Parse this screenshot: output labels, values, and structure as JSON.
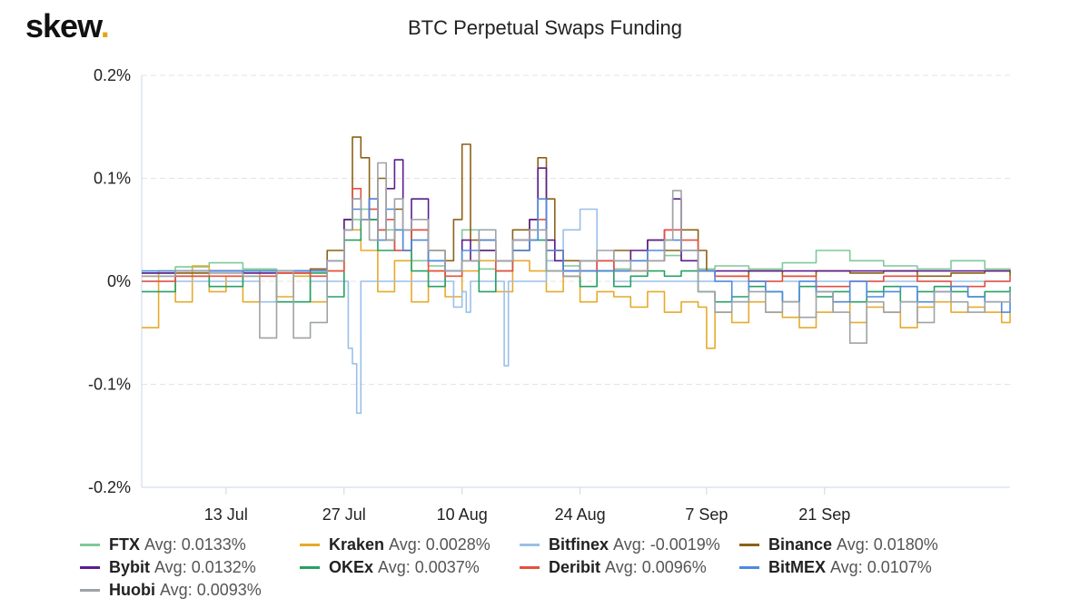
{
  "brand": {
    "name": "skew",
    "dot": "."
  },
  "chart_data": {
    "type": "line",
    "title": "BTC Perpetual Swaps Funding",
    "xlabel": "",
    "ylabel": "",
    "ylim": [
      -0.2,
      0.2
    ],
    "y_ticks": [
      0.2,
      0.1,
      0,
      -0.1,
      -0.2
    ],
    "y_tick_labels": [
      "0.2%",
      "0.1%",
      "0%",
      "-0.1%",
      "-0.2%"
    ],
    "x_range_days": [
      0,
      103
    ],
    "x_ticks": [
      {
        "day": 10,
        "label": "13 Jul"
      },
      {
        "day": 24,
        "label": "27 Jul"
      },
      {
        "day": 38,
        "label": "10 Aug"
      },
      {
        "day": 52,
        "label": "24 Aug"
      },
      {
        "day": 67,
        "label": "7 Sep"
      },
      {
        "day": 81,
        "label": "21 Sep"
      }
    ],
    "grid": true,
    "series": [
      {
        "name": "FTX",
        "avg_label": "Avg: 0.0133%",
        "color": "#7fc99a",
        "x": [
          0,
          4,
          8,
          12,
          16,
          20,
          22,
          24,
          26,
          28,
          30,
          32,
          34,
          36,
          38,
          40,
          42,
          44,
          46,
          48,
          50,
          52,
          54,
          56,
          58,
          60,
          62,
          64,
          66,
          68,
          72,
          76,
          80,
          84,
          88,
          92,
          96,
          100,
          103
        ],
        "y": [
          0.008,
          0.014,
          0.018,
          0.012,
          0.01,
          0.012,
          0.02,
          0.06,
          0.07,
          0.05,
          0.03,
          0.02,
          0.015,
          0.01,
          0.05,
          0.012,
          0.02,
          0.03,
          0.05,
          0.02,
          0.015,
          0.01,
          0.02,
          0.012,
          0.01,
          0.02,
          0.025,
          0.02,
          0.012,
          0.015,
          0.012,
          0.018,
          0.03,
          0.02,
          0.015,
          0.012,
          0.02,
          0.012,
          0.008
        ]
      },
      {
        "name": "Kraken",
        "avg_label": "Avg: 0.0028%",
        "color": "#e6aa2c",
        "x": [
          0,
          2,
          4,
          6,
          8,
          10,
          12,
          14,
          16,
          18,
          20,
          22,
          24,
          26,
          28,
          30,
          32,
          34,
          36,
          38,
          40,
          42,
          44,
          46,
          48,
          50,
          52,
          54,
          56,
          58,
          60,
          62,
          64,
          66,
          67,
          68,
          70,
          72,
          74,
          76,
          78,
          80,
          82,
          84,
          86,
          88,
          90,
          92,
          94,
          96,
          98,
          100,
          102,
          103
        ],
        "y": [
          -0.045,
          0.01,
          -0.02,
          0.015,
          -0.01,
          0.005,
          -0.02,
          0.01,
          -0.015,
          0.005,
          -0.02,
          0.01,
          0.05,
          0.03,
          -0.01,
          0.02,
          -0.02,
          0.01,
          -0.015,
          0.01,
          0.02,
          -0.01,
          0.02,
          0.01,
          -0.01,
          0.005,
          -0.02,
          -0.01,
          -0.015,
          -0.025,
          -0.01,
          -0.03,
          -0.02,
          -0.025,
          -0.065,
          -0.03,
          -0.04,
          -0.02,
          -0.03,
          -0.035,
          -0.045,
          -0.03,
          -0.02,
          -0.04,
          -0.025,
          -0.03,
          -0.045,
          -0.025,
          -0.02,
          -0.03,
          -0.025,
          -0.03,
          -0.04,
          -0.03
        ]
      },
      {
        "name": "Bitfinex",
        "avg_label": "Avg: -0.0019%",
        "color": "#9bbfe9",
        "x": [
          0,
          10,
          14,
          20,
          23,
          24,
          24.5,
          25,
          25.5,
          26,
          26.5,
          27,
          30,
          34,
          36,
          37,
          38,
          38.5,
          39,
          40,
          41,
          42,
          43,
          43.5,
          44,
          46,
          48,
          50,
          52,
          54,
          56,
          60,
          64,
          68,
          72,
          76,
          80,
          84,
          88,
          92,
          96,
          100,
          103
        ],
        "y": [
          0,
          0,
          -0.02,
          0,
          0,
          0,
          -0.065,
          -0.08,
          -0.128,
          0,
          0,
          0,
          0,
          0,
          0,
          -0.025,
          -0.01,
          -0.03,
          0,
          0,
          0,
          0,
          -0.082,
          0,
          0,
          0,
          0.02,
          0.05,
          0.07,
          0.02,
          0,
          0,
          0,
          0,
          0,
          0,
          0,
          0,
          0,
          0,
          0,
          0,
          0
        ]
      },
      {
        "name": "Binance",
        "avg_label": "Avg: 0.0180%",
        "color": "#8a6217",
        "x": [
          0,
          4,
          8,
          12,
          16,
          20,
          22,
          24,
          25,
          26,
          27,
          28,
          29,
          30,
          31,
          32,
          34,
          36,
          37,
          38,
          39,
          40,
          42,
          44,
          46,
          47,
          48,
          49,
          50,
          52,
          54,
          56,
          58,
          60,
          62,
          64,
          66,
          67,
          68,
          72,
          76,
          80,
          84,
          88,
          92,
          96,
          100,
          103
        ],
        "y": [
          0.005,
          0.008,
          0.01,
          0.01,
          0.008,
          0.012,
          0.03,
          0.06,
          0.14,
          0.12,
          0.06,
          0.1,
          0.04,
          0.07,
          0.03,
          0.05,
          0.03,
          0.02,
          0.06,
          0.133,
          0.04,
          0.03,
          0.02,
          0.05,
          0.06,
          0.12,
          0.08,
          0.03,
          0.02,
          0.02,
          0.02,
          0.03,
          0.02,
          0.04,
          0.03,
          0.05,
          0.03,
          0.01,
          0.005,
          0.01,
          0.005,
          0.01,
          0.008,
          0.01,
          0.005,
          0.008,
          0.01,
          0.005
        ]
      },
      {
        "name": "Bybit",
        "avg_label": "Avg: 0.0132%",
        "color": "#5b1d8e",
        "x": [
          0,
          4,
          8,
          12,
          16,
          20,
          22,
          24,
          25,
          26,
          27,
          28,
          29,
          30,
          31,
          32,
          34,
          36,
          38,
          39,
          40,
          42,
          44,
          46,
          47,
          48,
          49,
          50,
          52,
          54,
          56,
          58,
          60,
          62,
          63,
          64,
          66,
          68,
          72,
          76,
          80,
          84,
          88,
          92,
          96,
          100,
          103
        ],
        "y": [
          0.008,
          0.01,
          0.01,
          0.008,
          0.01,
          0.01,
          0.02,
          0.06,
          0.08,
          0.06,
          0.08,
          0.05,
          0.09,
          0.118,
          0.05,
          0.08,
          0.02,
          0.01,
          0.04,
          0.02,
          0.03,
          0.02,
          0.04,
          0.06,
          0.11,
          0.04,
          0.02,
          0.01,
          0.02,
          0.01,
          0.02,
          0.03,
          0.04,
          0.05,
          0.08,
          0.02,
          0.01,
          0.01,
          0.01,
          0.01,
          0.01,
          0.01,
          0.01,
          0.01,
          0.01,
          0.01,
          0.01
        ]
      },
      {
        "name": "OKEx",
        "avg_label": "Avg: 0.0037%",
        "color": "#27a064",
        "x": [
          0,
          4,
          8,
          12,
          16,
          20,
          22,
          24,
          26,
          28,
          30,
          32,
          34,
          36,
          38,
          40,
          42,
          44,
          46,
          48,
          50,
          52,
          54,
          56,
          58,
          60,
          62,
          64,
          66,
          68,
          70,
          72,
          74,
          76,
          78,
          80,
          82,
          84,
          86,
          88,
          90,
          92,
          94,
          96,
          98,
          100,
          103
        ],
        "y": [
          -0.01,
          0.005,
          -0.005,
          0.01,
          -0.02,
          0.008,
          -0.015,
          0.04,
          0.06,
          0.03,
          0.05,
          0.01,
          -0.005,
          0.01,
          0.02,
          -0.01,
          0.01,
          0.03,
          0.04,
          0.01,
          0.005,
          -0.005,
          0.01,
          -0.005,
          0.005,
          0.01,
          0.005,
          0.01,
          -0.01,
          -0.02,
          -0.015,
          -0.005,
          -0.01,
          -0.02,
          -0.005,
          -0.015,
          -0.01,
          -0.02,
          -0.01,
          -0.005,
          -0.02,
          -0.01,
          -0.005,
          -0.01,
          -0.015,
          -0.01,
          -0.005
        ]
      },
      {
        "name": "Deribit",
        "avg_label": "Avg: 0.0096%",
        "color": "#e84e40",
        "x": [
          0,
          4,
          8,
          12,
          16,
          20,
          22,
          24,
          25,
          26,
          27,
          28,
          29,
          30,
          32,
          34,
          36,
          38,
          40,
          42,
          44,
          46,
          47,
          48,
          50,
          52,
          54,
          56,
          58,
          60,
          62,
          64,
          66,
          68,
          72,
          76,
          80,
          84,
          88,
          92,
          96,
          100,
          103
        ],
        "y": [
          0,
          0.005,
          0.005,
          0.005,
          0.008,
          0.005,
          0.01,
          0.05,
          0.09,
          0.06,
          0.07,
          0.05,
          0.06,
          0.03,
          0.05,
          0.01,
          0.005,
          0.02,
          0.04,
          0.01,
          0.03,
          0.05,
          0.06,
          0.03,
          0.005,
          0.01,
          0.02,
          0.01,
          0.01,
          0.02,
          0.05,
          0.04,
          0.01,
          0.005,
          0.0,
          0.005,
          -0.005,
          0.0,
          0.005,
          0.0,
          -0.005,
          0.0,
          0.005
        ]
      },
      {
        "name": "BitMEX",
        "avg_label": "Avg: 0.0107%",
        "color": "#4d8ae0",
        "x": [
          0,
          4,
          8,
          12,
          16,
          20,
          22,
          24,
          25,
          26,
          27,
          28,
          29,
          30,
          31,
          32,
          34,
          36,
          38,
          40,
          42,
          44,
          46,
          47,
          48,
          50,
          52,
          54,
          56,
          58,
          60,
          62,
          64,
          66,
          68,
          70,
          72,
          74,
          76,
          78,
          80,
          82,
          84,
          86,
          88,
          90,
          92,
          94,
          96,
          98,
          100,
          102,
          103
        ],
        "y": [
          0.01,
          0.01,
          0.01,
          0.01,
          0.01,
          0.01,
          0.02,
          0.05,
          0.07,
          0.06,
          0.08,
          0.04,
          0.07,
          0.05,
          0.03,
          0.04,
          0.02,
          0.01,
          0.03,
          0.04,
          0.02,
          0.03,
          0.04,
          0.08,
          0.03,
          0.01,
          0.01,
          0.01,
          0.01,
          0.02,
          0.03,
          0.04,
          0.03,
          0.01,
          0.0,
          -0.02,
          0.0,
          -0.01,
          -0.02,
          0.0,
          -0.01,
          -0.02,
          0.0,
          -0.015,
          -0.01,
          -0.005,
          -0.02,
          -0.01,
          -0.005,
          -0.015,
          -0.02,
          -0.03,
          -0.01
        ]
      },
      {
        "name": "Huobi",
        "avg_label": "Avg: 0.0093%",
        "color": "#9ea3a6",
        "x": [
          0,
          4,
          8,
          12,
          14,
          16,
          18,
          20,
          22,
          24,
          25,
          26,
          27,
          28,
          29,
          30,
          31,
          32,
          34,
          36,
          38,
          40,
          42,
          44,
          46,
          48,
          50,
          52,
          54,
          56,
          58,
          60,
          62,
          63,
          64,
          66,
          68,
          70,
          72,
          74,
          76,
          78,
          80,
          82,
          84,
          86,
          88,
          90,
          92,
          94,
          96,
          98,
          100,
          103
        ],
        "y": [
          0.005,
          0.01,
          0.008,
          0.005,
          -0.055,
          0.01,
          -0.055,
          -0.04,
          0.02,
          0.05,
          0.08,
          0.06,
          0.04,
          0.115,
          0.04,
          0.08,
          0.05,
          0.06,
          0.03,
          0.01,
          0.02,
          0.05,
          0.02,
          0.04,
          0.05,
          0.01,
          0.005,
          0.02,
          0.03,
          0.02,
          0.01,
          0.02,
          0.04,
          0.088,
          0.03,
          -0.01,
          -0.03,
          -0.02,
          -0.01,
          -0.03,
          -0.02,
          -0.035,
          -0.01,
          -0.03,
          -0.06,
          -0.02,
          -0.03,
          -0.02,
          -0.04,
          -0.01,
          -0.02,
          -0.03,
          -0.02,
          -0.01
        ]
      }
    ]
  }
}
